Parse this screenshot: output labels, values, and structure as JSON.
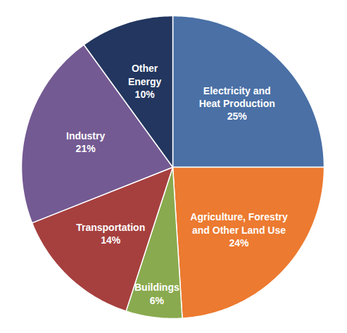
{
  "chart_data": {
    "type": "pie",
    "categories": [
      "Electricity and\nHeat Production",
      "Agriculture, Forestry\nand Other Land Use",
      "Buildings",
      "Transportation",
      "Industry",
      "Other\nEnergy"
    ],
    "values": [
      25,
      24,
      6,
      14,
      21,
      10
    ],
    "value_labels": [
      "25%",
      "24%",
      "6%",
      "14%",
      "21%",
      "10%"
    ],
    "colors": [
      "#4a70a6",
      "#ec7a30",
      "#8aaa4f",
      "#a6403f",
      "#745a93",
      "#22365f"
    ],
    "data_labels": true
  }
}
